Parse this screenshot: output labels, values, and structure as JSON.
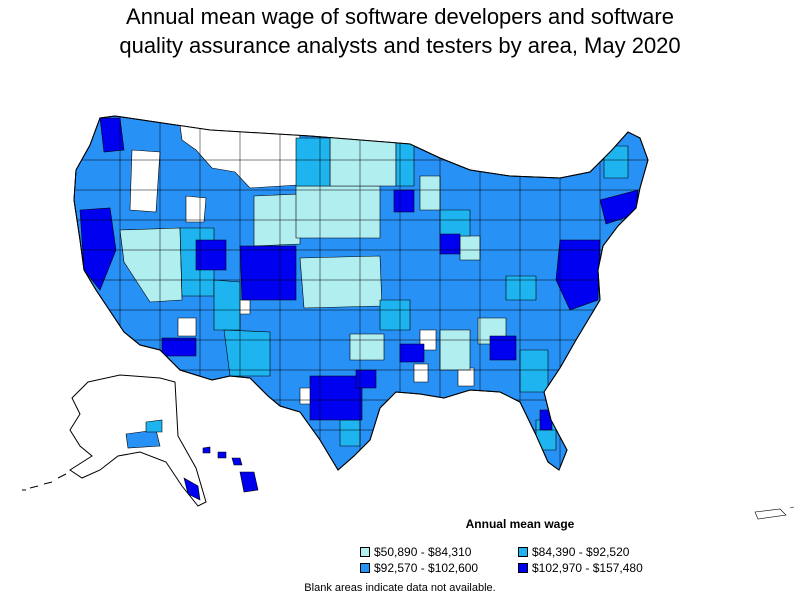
{
  "title_lines": [
    "Annual mean wage of software developers and software",
    "quality assurance analysts and testers by area, May 2020"
  ],
  "legend": {
    "title": "Annual mean wage",
    "items": [
      {
        "label": "$50,890 - $84,310",
        "color": "#B0EEF0"
      },
      {
        "label": "$84,390 - $92,520",
        "color": "#1EB4F0"
      },
      {
        "label": "$92,570 - $102,600",
        "color": "#2891F5"
      },
      {
        "label": "$102,970 - $157,480",
        "color": "#0000F0"
      }
    ]
  },
  "footnote": "Blank areas indicate data not available.",
  "map": {
    "regions": [
      "contiguous-us",
      "alaska",
      "hawaii",
      "puerto-rico"
    ],
    "border_color": "#000000",
    "blank_color": "#FFFFFF"
  }
}
